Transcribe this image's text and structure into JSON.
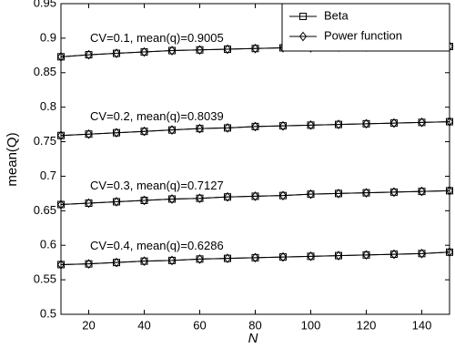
{
  "chart_data": {
    "type": "line",
    "xlabel": "N",
    "ylabel": "mean(Q)",
    "x": [
      10,
      20,
      30,
      40,
      50,
      60,
      70,
      80,
      90,
      100,
      110,
      120,
      130,
      140,
      150
    ],
    "xlim": [
      10,
      150
    ],
    "xticks": [
      20,
      40,
      60,
      80,
      100,
      120,
      140
    ],
    "ylim": [
      0.5,
      0.95
    ],
    "yticks": [
      0.5,
      0.55,
      0.6,
      0.65,
      0.7,
      0.75,
      0.8,
      0.85,
      0.9,
      0.95
    ],
    "legend": "upper right",
    "annotations": [
      "CV=0.1, mean(q)=0.9005",
      "CV=0.2, mean(q)=0.8039",
      "CV=0.3, mean(q)=0.7127",
      "CV=0.4, mean(q)=0.6286"
    ],
    "series": [
      {
        "name": "Beta",
        "marker": "square",
        "color": "#000000",
        "values": [
          [
            0.873,
            0.876,
            0.878,
            0.88,
            0.882,
            0.883,
            0.884,
            0.885,
            0.886,
            0.886,
            0.887,
            0.887,
            0.888,
            0.888,
            0.888
          ],
          [
            0.759,
            0.761,
            0.763,
            0.765,
            0.767,
            0.769,
            0.77,
            0.772,
            0.773,
            0.774,
            0.775,
            0.776,
            0.777,
            0.778,
            0.779
          ],
          [
            0.659,
            0.661,
            0.663,
            0.665,
            0.667,
            0.668,
            0.67,
            0.671,
            0.672,
            0.674,
            0.675,
            0.676,
            0.677,
            0.678,
            0.679
          ],
          [
            0.572,
            0.573,
            0.575,
            0.577,
            0.578,
            0.58,
            0.581,
            0.582,
            0.583,
            0.584,
            0.585,
            0.586,
            0.587,
            0.588,
            0.59
          ]
        ]
      },
      {
        "name": "Power function",
        "marker": "diamond",
        "color": "#000000",
        "values": [
          [
            0.873,
            0.876,
            0.878,
            0.88,
            0.882,
            0.883,
            0.884,
            0.885,
            0.886,
            0.886,
            0.887,
            0.887,
            0.888,
            0.888,
            0.888
          ],
          [
            0.759,
            0.761,
            0.763,
            0.765,
            0.767,
            0.769,
            0.77,
            0.772,
            0.773,
            0.774,
            0.775,
            0.776,
            0.777,
            0.778,
            0.779
          ],
          [
            0.659,
            0.661,
            0.663,
            0.665,
            0.667,
            0.668,
            0.67,
            0.671,
            0.672,
            0.674,
            0.675,
            0.676,
            0.677,
            0.678,
            0.679
          ],
          [
            0.572,
            0.573,
            0.575,
            0.577,
            0.578,
            0.58,
            0.581,
            0.582,
            0.583,
            0.584,
            0.585,
            0.586,
            0.587,
            0.588,
            0.59
          ]
        ]
      }
    ]
  }
}
